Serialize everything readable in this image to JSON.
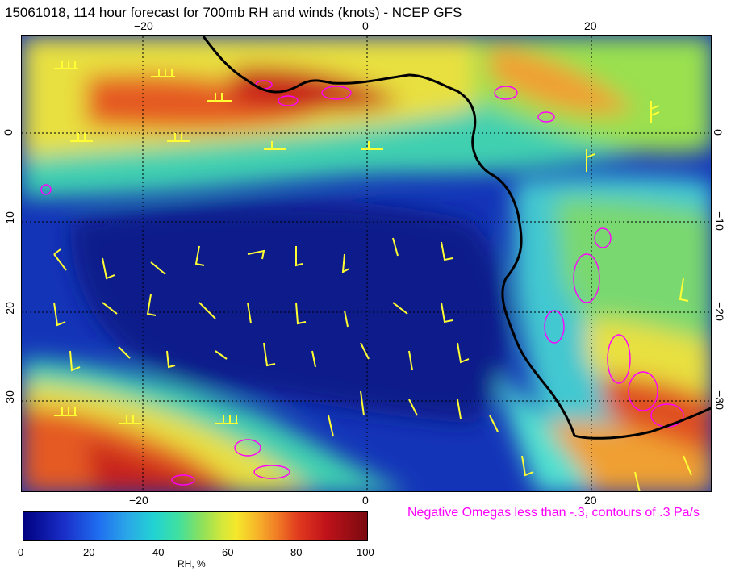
{
  "title": "15061018, 114 hour forecast for 700mb RH and winds (knots) - NCEP GFS",
  "map": {
    "top_lon_ticks": [
      "−20",
      "0",
      "20"
    ],
    "bottom_lon_ticks": [
      "−20",
      "0",
      "20"
    ],
    "left_lat_ticks": [
      "0",
      "−10",
      "−20",
      "−30"
    ],
    "right_lat_ticks": [
      "0",
      "−10",
      "−20",
      "−30"
    ],
    "coastline_color": "#000000",
    "wind_barb_color": "#ffff33",
    "omega_contour_color": "#ff00ff"
  },
  "omega_note": "Negative Omegas less than -.3, contours of .3 Pa/s",
  "colorbar": {
    "ticks": [
      "0",
      "20",
      "40",
      "60",
      "80",
      "100"
    ],
    "label": "RH, %"
  }
}
